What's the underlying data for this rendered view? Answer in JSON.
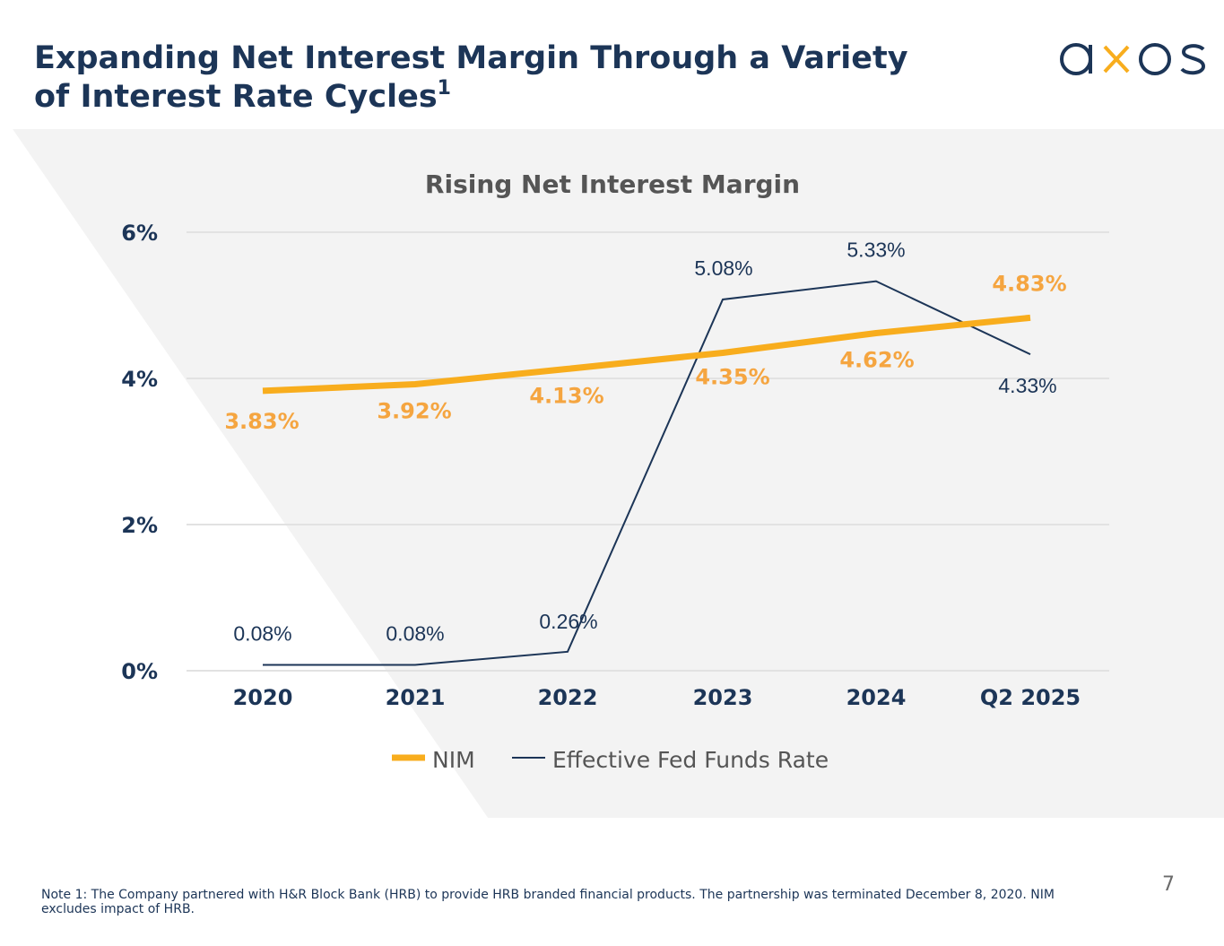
{
  "header": {
    "title_line1": "Expanding Net Interest Margin Through a Variety",
    "title_line2": "of Interest Rate Cycles",
    "title_sup": "1",
    "logo_text": "axos"
  },
  "colors": {
    "navy": "#1c3557",
    "orange": "#f8ad1d",
    "orange_label": "#f5a540",
    "panel_gray": "#f3f3f3"
  },
  "chart_data": {
    "type": "line",
    "title": "Rising Net Interest Margin",
    "categories": [
      "2020",
      "2021",
      "2022",
      "2023",
      "2024",
      "Q2 2025"
    ],
    "series": [
      {
        "name": "NIM",
        "values": [
          3.83,
          3.92,
          4.13,
          4.35,
          4.62,
          4.83
        ],
        "labels": [
          "3.83%",
          "3.92%",
          "4.13%",
          "4.35%",
          "4.62%",
          "4.83%"
        ],
        "color": "#f8ad1d"
      },
      {
        "name": "Effective Fed Funds Rate",
        "values": [
          0.08,
          0.08,
          0.26,
          5.08,
          5.33,
          4.33
        ],
        "labels": [
          "0.08%",
          "0.08%",
          "0.26%",
          "5.08%",
          "5.33%",
          "4.33%"
        ],
        "color": "#1c3557"
      }
    ],
    "yticks": [
      0,
      2,
      4,
      6
    ],
    "ytick_labels": [
      "0%",
      "2%",
      "4%",
      "6%"
    ],
    "ylim": [
      0,
      6
    ],
    "grid": true,
    "legend": "bottom"
  },
  "footer": {
    "note": "Note 1: The Company partnered with H&R Block Bank (HRB) to provide HRB branded financial products. The partnership was terminated December 8, 2020. NIM excludes impact of HRB.",
    "page_number": "7"
  }
}
